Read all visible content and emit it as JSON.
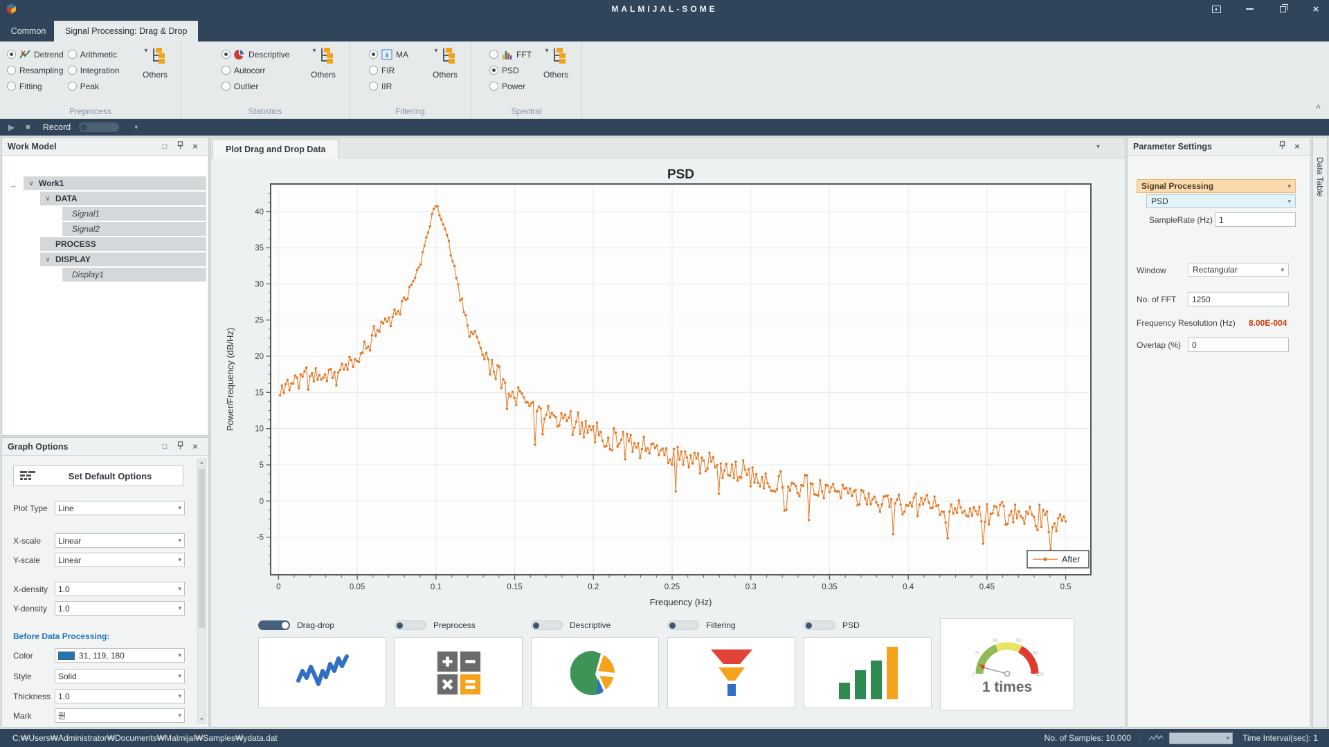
{
  "window": {
    "title": "MALMIJAL-SOME"
  },
  "icons": {
    "caret_down": "▾",
    "collapse_up": "^",
    "expander": "∨",
    "tree_arrow": "→",
    "play": "▶",
    "stop": "■",
    "maximize": "□",
    "close": "×",
    "scroll_up": "▲",
    "scroll_down": "▼",
    "ribbon_option_arrow": "▴"
  },
  "tabs": [
    {
      "label": "Common",
      "active": false
    },
    {
      "label": "Signal Processing: Drag & Drop",
      "active": true
    }
  ],
  "ribbon": {
    "groups": [
      {
        "label": "Preprocess",
        "others_label": "Others",
        "columns": [
          [
            "Detrend",
            "Resampling",
            "Fitting"
          ],
          [
            "Arithmetic",
            "Integration",
            "Peak"
          ]
        ],
        "selected": [
          "Detrend"
        ],
        "icons": {
          "Detrend": "detrend-icon"
        }
      },
      {
        "label": "Statistics",
        "others_label": "Others",
        "columns": [
          [
            "Descriptive",
            "Autocorr",
            "Outlier"
          ]
        ],
        "selected": [
          "Descriptive"
        ],
        "icons": {
          "Descriptive": "pie-chart-icon"
        }
      },
      {
        "label": "Filtering",
        "others_label": "Others",
        "columns": [
          [
            "MA",
            "FIR",
            "IIR"
          ]
        ],
        "selected": [
          "MA"
        ],
        "icons": {
          "MA": "moving-average-icon"
        }
      },
      {
        "label": "Spectral",
        "others_label": "Others",
        "columns": [
          [
            "FFT",
            "PSD",
            "Power"
          ]
        ],
        "selected": [
          "PSD"
        ],
        "icons": {
          "FFT": "fft-bars-icon"
        }
      }
    ]
  },
  "record_bar": {
    "label": "Record"
  },
  "work_model": {
    "title": "Work Model",
    "tree": [
      {
        "label": "Work1",
        "depth": 0,
        "style": "bold",
        "expander": true
      },
      {
        "label": "DATA",
        "depth": 1,
        "style": "bold",
        "expander": true
      },
      {
        "label": "Signal1",
        "depth": 2,
        "style": "italic",
        "expander": false
      },
      {
        "label": "Signal2",
        "depth": 2,
        "style": "italic",
        "expander": false
      },
      {
        "label": "PROCESS",
        "depth": 1,
        "style": "bold",
        "expander": false
      },
      {
        "label": "DISPLAY",
        "depth": 1,
        "style": "bold",
        "expander": true
      },
      {
        "label": "Display1",
        "depth": 2,
        "style": "italic",
        "expander": false
      }
    ]
  },
  "graph_options": {
    "title": "Graph Options",
    "button": "Set Default Options",
    "rows": [
      {
        "type": "select",
        "label": "Plot Type",
        "value": "Line"
      },
      {
        "type": "select",
        "label": "X-scale",
        "value": "Linear"
      },
      {
        "type": "select",
        "label": "Y-scale",
        "value": "Linear"
      },
      {
        "type": "select",
        "label": "X-density",
        "value": "1.0"
      },
      {
        "type": "select",
        "label": "Y-density",
        "value": "1.0"
      },
      {
        "type": "section",
        "label": "Before Data Processing:"
      },
      {
        "type": "color",
        "label": "Color",
        "value": "31, 119, 180",
        "swatch": "#1f77b4"
      },
      {
        "type": "select",
        "label": "Style",
        "value": "Solid"
      },
      {
        "type": "select",
        "label": "Thickness",
        "value": "1.0"
      },
      {
        "type": "select",
        "label": "Mark",
        "value": "원"
      }
    ]
  },
  "plot_panel": {
    "tab": "Plot Drag and Drop Data"
  },
  "chart_data": {
    "type": "line",
    "title": "PSD",
    "xlabel": "Frequency (Hz)",
    "ylabel": "Power/Frequency (dB/Hz)",
    "xlim": [
      -0.005,
      0.516
    ],
    "ylim": [
      -10.2,
      43.8
    ],
    "x_ticks": [
      0,
      0.05,
      0.1,
      0.15,
      0.2,
      0.25,
      0.3,
      0.35,
      0.4,
      0.45,
      0.5
    ],
    "x_tick_labels": [
      "0",
      "0.05",
      "0.1",
      "0.15",
      "0.2",
      "0.25",
      "0.3",
      "0.35",
      "0.4",
      "0.45",
      "0.5"
    ],
    "y_ticks": [
      -5,
      0,
      5,
      10,
      15,
      20,
      25,
      30,
      35,
      40
    ],
    "grid": true,
    "legend": {
      "position": "lower right",
      "entries": [
        {
          "label": "After",
          "color": "#e6751e"
        }
      ]
    },
    "series": [
      {
        "name": "After",
        "color": "#e6751e",
        "marker": "circle",
        "envelope": [
          [
            0.001,
            14.5
          ],
          [
            0.005,
            16.5
          ],
          [
            0.01,
            16.8
          ],
          [
            0.02,
            17.2
          ],
          [
            0.03,
            17.0
          ],
          [
            0.04,
            17.8
          ],
          [
            0.05,
            19.5
          ],
          [
            0.055,
            21.5
          ],
          [
            0.06,
            22.5
          ],
          [
            0.065,
            24.5
          ],
          [
            0.07,
            25.0
          ],
          [
            0.075,
            26.0
          ],
          [
            0.08,
            27.5
          ],
          [
            0.085,
            29.5
          ],
          [
            0.09,
            33.0
          ],
          [
            0.095,
            37.5
          ],
          [
            0.1,
            41.0
          ],
          [
            0.103,
            39.5
          ],
          [
            0.107,
            36.5
          ],
          [
            0.11,
            33.5
          ],
          [
            0.115,
            28.5
          ],
          [
            0.12,
            24.5
          ],
          [
            0.125,
            22.5
          ],
          [
            0.13,
            20.5
          ],
          [
            0.14,
            17.5
          ],
          [
            0.15,
            15.0
          ],
          [
            0.16,
            13.5
          ],
          [
            0.17,
            12.5
          ],
          [
            0.18,
            11.5
          ],
          [
            0.19,
            10.5
          ],
          [
            0.2,
            9.5
          ],
          [
            0.21,
            9.0
          ],
          [
            0.22,
            8.3
          ],
          [
            0.23,
            7.6
          ],
          [
            0.24,
            7.0
          ],
          [
            0.25,
            6.4
          ],
          [
            0.26,
            5.8
          ],
          [
            0.27,
            5.2
          ],
          [
            0.28,
            4.6
          ],
          [
            0.29,
            4.0
          ],
          [
            0.3,
            3.5
          ],
          [
            0.31,
            3.0
          ],
          [
            0.32,
            2.6
          ],
          [
            0.33,
            2.2
          ],
          [
            0.34,
            1.8
          ],
          [
            0.35,
            1.4
          ],
          [
            0.36,
            1.0
          ],
          [
            0.37,
            0.6
          ],
          [
            0.38,
            0.2
          ],
          [
            0.39,
            -0.2
          ],
          [
            0.4,
            -0.5
          ],
          [
            0.42,
            -1.0
          ],
          [
            0.44,
            -1.4
          ],
          [
            0.46,
            -1.8
          ],
          [
            0.48,
            -2.2
          ],
          [
            0.5,
            -2.8
          ]
        ],
        "n_points": 420,
        "noise_sigma": 1.4,
        "spike_prob": 0.055,
        "spike_max": 5,
        "seed": 11
      }
    ]
  },
  "bottom": {
    "toggles": [
      {
        "label": "Drag-drop",
        "on": true
      },
      {
        "label": "Preprocess",
        "on": false
      },
      {
        "label": "Descriptive",
        "on": false
      },
      {
        "label": "Filtering",
        "on": false
      },
      {
        "label": "PSD",
        "on": false
      }
    ],
    "gauge": {
      "label": "1 times",
      "ticks": [
        "0",
        "20",
        "40",
        "60",
        "80",
        "100"
      ]
    }
  },
  "parameter_settings": {
    "title": "Parameter Settings",
    "category": "Signal Processing",
    "method": "PSD",
    "samplerate": {
      "label": "SampleRate (Hz)",
      "value": "1"
    },
    "window": {
      "label": "Window",
      "value": "Rectangular"
    },
    "nfft": {
      "label": "No. of FFT",
      "value": "1250"
    },
    "freq_res": {
      "label": "Frequency Resolution (Hz)",
      "value": "8.00E-004"
    },
    "overlap": {
      "label": "Overlap (%)",
      "value": "0"
    }
  },
  "data_table_tab": "Data Table",
  "status_bar": {
    "path": "C:₩Users₩Administrator₩Documents₩Malmijal₩Samples₩ydata.dat",
    "samples_label": "No. of Samples: 10,000",
    "time_label": "Time Interval(sec): 1"
  }
}
